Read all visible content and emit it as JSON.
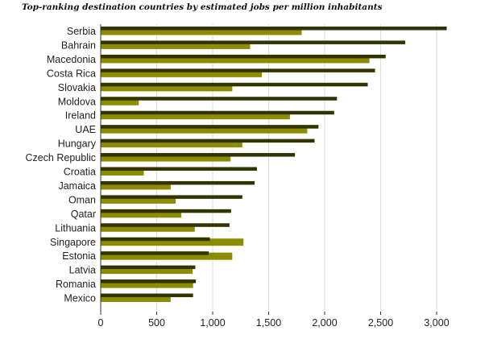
{
  "chart_data": {
    "type": "bar",
    "orientation": "horizontal",
    "title": "Top-ranking destination countries by estimated jobs per million inhabitants",
    "categories": [
      "Serbia",
      "Bahrain",
      "Macedonia",
      "Costa Rica",
      "Slovakia",
      "Moldova",
      "Ireland",
      "UAE",
      "Hungary",
      "Czech Republic",
      "Croatia",
      "Jamaica",
      "Oman",
      "Qatar",
      "Lithuania",
      "Singapore",
      "Estonia",
      "Latvia",
      "Romania",
      "Mexico"
    ],
    "series": [
      {
        "color": "#333300",
        "values": [
          3090,
          2720,
          2545,
          2450,
          2385,
          2110,
          2085,
          1945,
          1910,
          1735,
          1395,
          1375,
          1265,
          1165,
          1150,
          975,
          965,
          845,
          850,
          825
        ]
      },
      {
        "color": "#8c8c00",
        "values": [
          1795,
          1335,
          2400,
          1440,
          1175,
          340,
          1690,
          1845,
          1265,
          1160,
          385,
          625,
          670,
          720,
          840,
          1275,
          1175,
          820,
          825,
          625
        ]
      }
    ],
    "xlim": [
      0,
      3100
    ],
    "xticks": [
      0,
      500,
      1000,
      1500,
      2000,
      2500,
      3000
    ],
    "xtick_labels": [
      "0",
      "500",
      "1,000",
      "1,500",
      "2,000",
      "2,500",
      "3,000"
    ],
    "grid": true,
    "legend": "none"
  }
}
